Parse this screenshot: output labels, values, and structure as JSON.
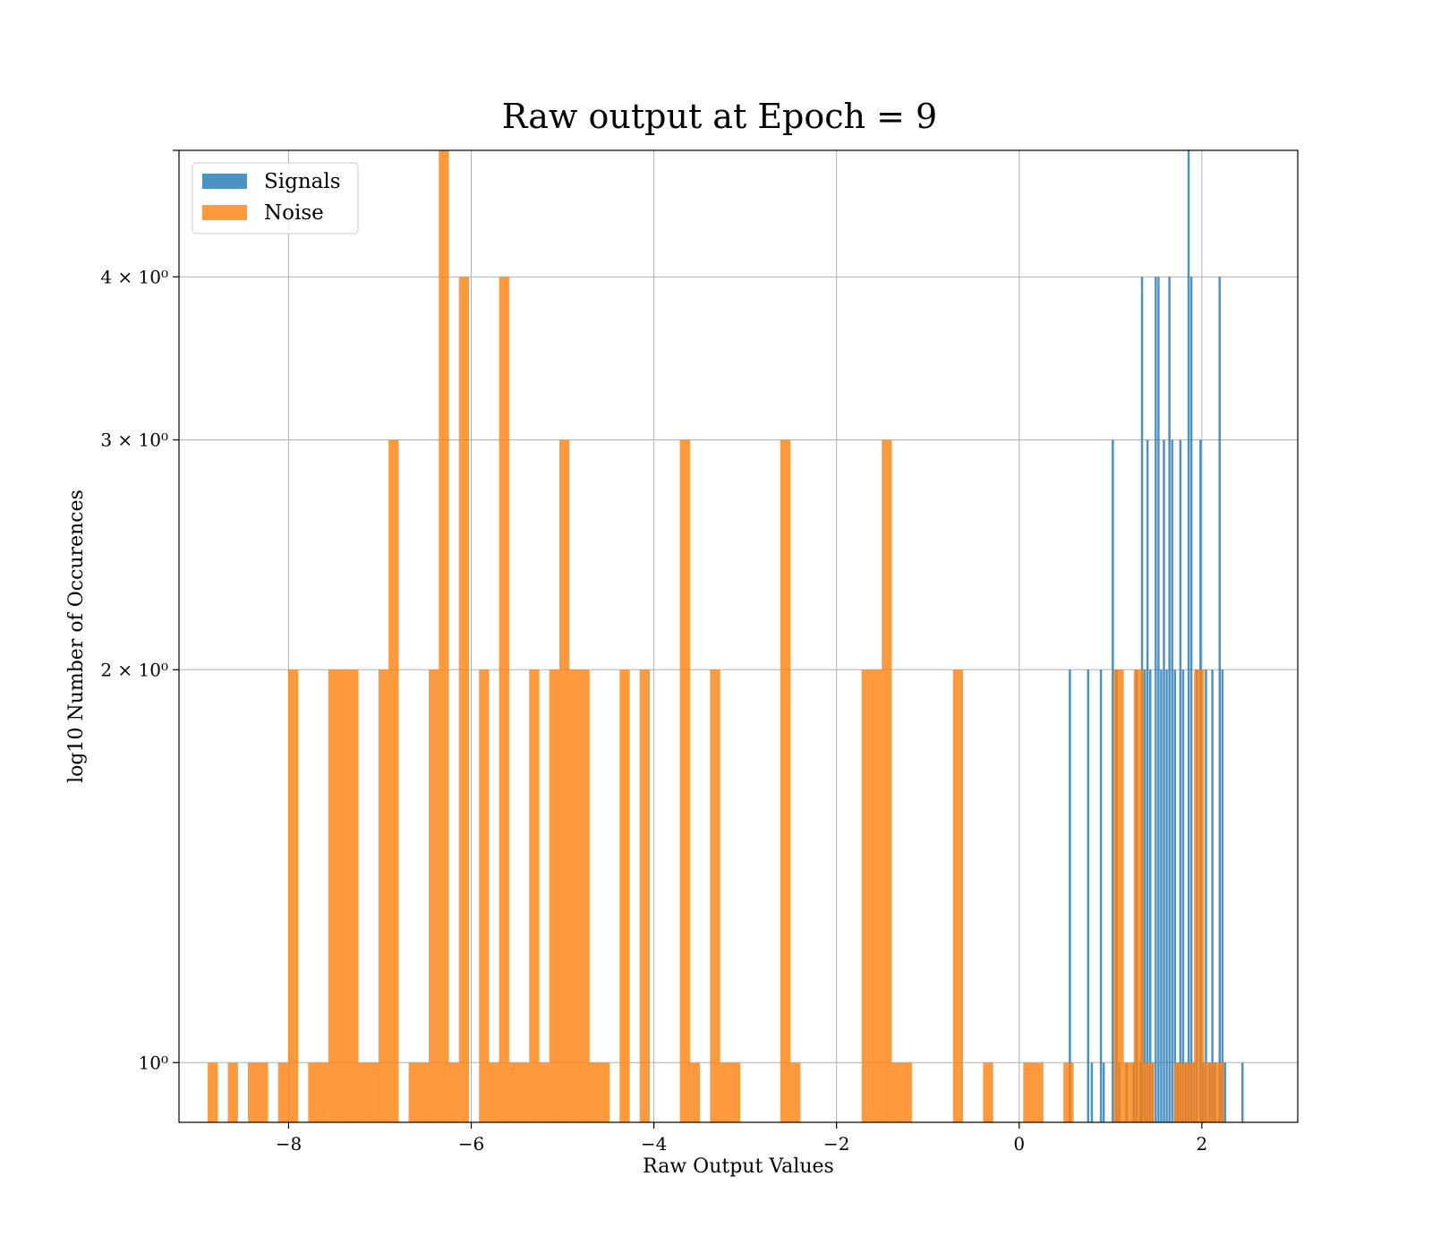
{
  "chart_data": {
    "type": "bar",
    "title": "Raw output at Epoch = 9",
    "xlabel": "Raw Output Values",
    "ylabel": "log10 Number of Occurences",
    "xlim": [
      -9.2,
      3.05
    ],
    "ylim": [
      0.9,
      5
    ],
    "y_scale": "log",
    "grid": true,
    "legend_position": "top-left",
    "x_ticks": [
      {
        "value": -8,
        "label": "−8"
      },
      {
        "value": -6,
        "label": "−6"
      },
      {
        "value": -4,
        "label": "−4"
      },
      {
        "value": -2,
        "label": "−2"
      },
      {
        "value": 0,
        "label": "0"
      },
      {
        "value": 2,
        "label": "2"
      }
    ],
    "y_ticks": [
      {
        "value": 1,
        "label": "10⁰"
      },
      {
        "value": 2,
        "label": "2 × 10⁰"
      },
      {
        "value": 3,
        "label": "3 × 10⁰"
      },
      {
        "value": 4,
        "label": "4 × 10⁰"
      },
      {
        "value": 5,
        "label": ""
      }
    ],
    "series": [
      {
        "name": "Signals",
        "color": "#1f77b4",
        "opacity": 0.8,
        "bin_width": 0.0243,
        "bins": [
          [
            0.555,
            2
          ],
          [
            0.755,
            2
          ],
          [
            0.795,
            1
          ],
          [
            0.895,
            2
          ],
          [
            0.925,
            1
          ],
          [
            1.025,
            3
          ],
          [
            1.065,
            2
          ],
          [
            1.095,
            1
          ],
          [
            1.175,
            1
          ],
          [
            1.255,
            1
          ],
          [
            1.285,
            2
          ],
          [
            1.325,
            1
          ],
          [
            1.345,
            4
          ],
          [
            1.375,
            2
          ],
          [
            1.405,
            3
          ],
          [
            1.435,
            2
          ],
          [
            1.465,
            1
          ],
          [
            1.495,
            4
          ],
          [
            1.525,
            4
          ],
          [
            1.555,
            2
          ],
          [
            1.585,
            3
          ],
          [
            1.615,
            2
          ],
          [
            1.645,
            4
          ],
          [
            1.675,
            3
          ],
          [
            1.705,
            2
          ],
          [
            1.735,
            1
          ],
          [
            1.765,
            3
          ],
          [
            1.795,
            2
          ],
          [
            1.825,
            1
          ],
          [
            1.855,
            5
          ],
          [
            1.885,
            4
          ],
          [
            1.915,
            1
          ],
          [
            1.945,
            2
          ],
          [
            1.985,
            3
          ],
          [
            2.015,
            1
          ],
          [
            2.045,
            2
          ],
          [
            2.085,
            1
          ],
          [
            2.115,
            2
          ],
          [
            2.145,
            1
          ],
          [
            2.195,
            4
          ],
          [
            2.225,
            2
          ],
          [
            2.255,
            1
          ],
          [
            2.445,
            1
          ]
        ]
      },
      {
        "name": "Noise",
        "color": "#ff7f0e",
        "opacity": 0.8,
        "bin_width": 0.111,
        "bins": [
          [
            -8.83,
            1
          ],
          [
            -8.61,
            1
          ],
          [
            -8.39,
            1
          ],
          [
            -8.28,
            1
          ],
          [
            -8.06,
            1
          ],
          [
            -7.95,
            2
          ],
          [
            -7.73,
            1
          ],
          [
            -7.62,
            1
          ],
          [
            -7.51,
            2
          ],
          [
            -7.4,
            2
          ],
          [
            -7.29,
            2
          ],
          [
            -7.18,
            1
          ],
          [
            -7.07,
            1
          ],
          [
            -6.96,
            2
          ],
          [
            -6.85,
            3
          ],
          [
            -6.63,
            1
          ],
          [
            -6.52,
            1
          ],
          [
            -6.41,
            2
          ],
          [
            -6.3,
            5
          ],
          [
            -6.19,
            1
          ],
          [
            -6.08,
            4
          ],
          [
            -5.86,
            2
          ],
          [
            -5.75,
            1
          ],
          [
            -5.64,
            4
          ],
          [
            -5.53,
            1
          ],
          [
            -5.42,
            1
          ],
          [
            -5.31,
            2
          ],
          [
            -5.2,
            1
          ],
          [
            -5.09,
            2
          ],
          [
            -4.98,
            3
          ],
          [
            -4.87,
            2
          ],
          [
            -4.76,
            2
          ],
          [
            -4.65,
            1
          ],
          [
            -4.54,
            1
          ],
          [
            -4.32,
            2
          ],
          [
            -4.1,
            2
          ],
          [
            -3.66,
            3
          ],
          [
            -3.55,
            1
          ],
          [
            -3.33,
            2
          ],
          [
            -3.22,
            1
          ],
          [
            -3.11,
            1
          ],
          [
            -2.56,
            3
          ],
          [
            -2.45,
            1
          ],
          [
            -1.67,
            2
          ],
          [
            -1.56,
            2
          ],
          [
            -1.45,
            3
          ],
          [
            -1.34,
            1
          ],
          [
            -1.23,
            1
          ],
          [
            -0.67,
            2
          ],
          [
            -0.34,
            1
          ],
          [
            0.1,
            1
          ],
          [
            0.21,
            1
          ],
          [
            0.54,
            1
          ],
          [
            1.09,
            2
          ],
          [
            1.2,
            1
          ],
          [
            1.31,
            2
          ],
          [
            1.42,
            1
          ],
          [
            1.75,
            1
          ],
          [
            1.86,
            1
          ],
          [
            1.97,
            2
          ],
          [
            2.08,
            1
          ],
          [
            2.19,
            1
          ]
        ]
      }
    ]
  }
}
